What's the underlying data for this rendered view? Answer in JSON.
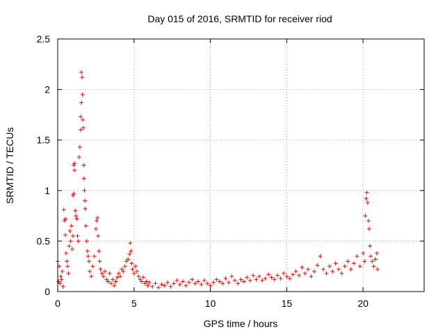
{
  "chart_data": {
    "type": "scatter",
    "title": "Day 015 of 2016, SRMTID for receiver riod",
    "xlabel": "GPS time / hours",
    "ylabel": "SRMTID / TECUs",
    "xlim": [
      0,
      24
    ],
    "ylim": [
      0,
      2.5
    ],
    "x_ticks": [
      0,
      5,
      10,
      15,
      20
    ],
    "x_tick_labels": [
      "0",
      "5",
      "10",
      "15",
      "20"
    ],
    "y_ticks": [
      0,
      0.5,
      1,
      1.5,
      2,
      2.5
    ],
    "y_tick_labels": [
      "0",
      "0.5",
      "1",
      "1.5",
      "2",
      "2.5"
    ],
    "grid": true,
    "marker": "+",
    "color": "#ff0000",
    "series": [
      {
        "name": "SRMTID",
        "points": [
          [
            0.0,
            0.3
          ],
          [
            0.05,
            0.1
          ],
          [
            0.1,
            0.25
          ],
          [
            0.15,
            0.08
          ],
          [
            0.2,
            0.15
          ],
          [
            0.25,
            0.12
          ],
          [
            0.3,
            0.2
          ],
          [
            0.35,
            0.05
          ],
          [
            0.4,
            0.81
          ],
          [
            0.45,
            0.7
          ],
          [
            0.5,
            0.72
          ],
          [
            0.5,
            0.56
          ],
          [
            0.55,
            0.38
          ],
          [
            0.6,
            0.3
          ],
          [
            0.65,
            0.25
          ],
          [
            0.7,
            0.18
          ],
          [
            0.75,
            0.45
          ],
          [
            0.8,
            0.6
          ],
          [
            0.85,
            0.5
          ],
          [
            0.9,
            0.65
          ],
          [
            0.95,
            0.42
          ],
          [
            1.0,
            0.55
          ],
          [
            1.0,
            0.95
          ],
          [
            1.05,
            0.97
          ],
          [
            1.05,
            1.25
          ],
          [
            1.1,
            1.27
          ],
          [
            1.1,
            1.2
          ],
          [
            1.15,
            0.8
          ],
          [
            1.2,
            0.75
          ],
          [
            1.25,
            0.72
          ],
          [
            1.3,
            0.55
          ],
          [
            1.35,
            0.5
          ],
          [
            1.4,
            1.33
          ],
          [
            1.45,
            1.43
          ],
          [
            1.5,
            1.6
          ],
          [
            1.5,
            1.73
          ],
          [
            1.55,
            1.87
          ],
          [
            1.55,
            2.17
          ],
          [
            1.6,
            2.12
          ],
          [
            1.62,
            1.95
          ],
          [
            1.65,
            1.7
          ],
          [
            1.68,
            1.62
          ],
          [
            1.7,
            1.25
          ],
          [
            1.72,
            1.12
          ],
          [
            1.75,
            1.0
          ],
          [
            1.78,
            0.9
          ],
          [
            1.8,
            0.82
          ],
          [
            1.85,
            0.65
          ],
          [
            1.9,
            0.5
          ],
          [
            1.95,
            0.4
          ],
          [
            2.0,
            0.35
          ],
          [
            2.05,
            0.3
          ],
          [
            2.1,
            0.2
          ],
          [
            2.2,
            0.15
          ],
          [
            2.3,
            0.25
          ],
          [
            2.4,
            0.35
          ],
          [
            2.5,
            0.62
          ],
          [
            2.55,
            0.7
          ],
          [
            2.6,
            0.73
          ],
          [
            2.65,
            0.55
          ],
          [
            2.7,
            0.4
          ],
          [
            2.75,
            0.3
          ],
          [
            2.8,
            0.22
          ],
          [
            2.9,
            0.18
          ],
          [
            3.0,
            0.15
          ],
          [
            3.1,
            0.2
          ],
          [
            3.2,
            0.12
          ],
          [
            3.3,
            0.1
          ],
          [
            3.4,
            0.18
          ],
          [
            3.5,
            0.08
          ],
          [
            3.6,
            0.12
          ],
          [
            3.7,
            0.06
          ],
          [
            3.8,
            0.1
          ],
          [
            3.9,
            0.14
          ],
          [
            4.0,
            0.18
          ],
          [
            4.1,
            0.15
          ],
          [
            4.2,
            0.22
          ],
          [
            4.3,
            0.2
          ],
          [
            4.4,
            0.25
          ],
          [
            4.5,
            0.3
          ],
          [
            4.6,
            0.32
          ],
          [
            4.7,
            0.37
          ],
          [
            4.75,
            0.48
          ],
          [
            4.8,
            0.4
          ],
          [
            4.85,
            0.28
          ],
          [
            4.9,
            0.22
          ],
          [
            5.0,
            0.18
          ],
          [
            5.1,
            0.25
          ],
          [
            5.2,
            0.2
          ],
          [
            5.3,
            0.15
          ],
          [
            5.4,
            0.12
          ],
          [
            5.5,
            0.1
          ],
          [
            5.6,
            0.14
          ],
          [
            5.7,
            0.08
          ],
          [
            5.8,
            0.1
          ],
          [
            5.9,
            0.06
          ],
          [
            6.0,
            0.09
          ],
          [
            6.2,
            0.05
          ],
          [
            6.4,
            0.08
          ],
          [
            6.6,
            0.04
          ],
          [
            6.8,
            0.07
          ],
          [
            7.0,
            0.06
          ],
          [
            7.2,
            0.09
          ],
          [
            7.4,
            0.05
          ],
          [
            7.6,
            0.08
          ],
          [
            7.8,
            0.11
          ],
          [
            8.0,
            0.07
          ],
          [
            8.2,
            0.1
          ],
          [
            8.4,
            0.06
          ],
          [
            8.6,
            0.09
          ],
          [
            8.8,
            0.12
          ],
          [
            9.0,
            0.08
          ],
          [
            9.2,
            0.1
          ],
          [
            9.4,
            0.07
          ],
          [
            9.6,
            0.11
          ],
          [
            9.8,
            0.08
          ],
          [
            10.0,
            0.06
          ],
          [
            10.2,
            0.09
          ],
          [
            10.4,
            0.12
          ],
          [
            10.6,
            0.1
          ],
          [
            10.8,
            0.08
          ],
          [
            11.0,
            0.13
          ],
          [
            11.2,
            0.09
          ],
          [
            11.4,
            0.15
          ],
          [
            11.6,
            0.11
          ],
          [
            11.8,
            0.08
          ],
          [
            12.0,
            0.12
          ],
          [
            12.2,
            0.1
          ],
          [
            12.4,
            0.14
          ],
          [
            12.6,
            0.11
          ],
          [
            12.8,
            0.16
          ],
          [
            13.0,
            0.12
          ],
          [
            13.2,
            0.15
          ],
          [
            13.4,
            0.11
          ],
          [
            13.6,
            0.13
          ],
          [
            13.8,
            0.17
          ],
          [
            14.0,
            0.14
          ],
          [
            14.2,
            0.12
          ],
          [
            14.4,
            0.16
          ],
          [
            14.6,
            0.13
          ],
          [
            14.8,
            0.18
          ],
          [
            15.0,
            0.15
          ],
          [
            15.2,
            0.13
          ],
          [
            15.4,
            0.17
          ],
          [
            15.6,
            0.2
          ],
          [
            15.8,
            0.16
          ],
          [
            16.0,
            0.24
          ],
          [
            16.2,
            0.18
          ],
          [
            16.4,
            0.22
          ],
          [
            16.6,
            0.15
          ],
          [
            16.8,
            0.2
          ],
          [
            17.0,
            0.26
          ],
          [
            17.2,
            0.35
          ],
          [
            17.4,
            0.22
          ],
          [
            17.6,
            0.18
          ],
          [
            17.8,
            0.25
          ],
          [
            18.0,
            0.2
          ],
          [
            18.2,
            0.28
          ],
          [
            18.4,
            0.22
          ],
          [
            18.6,
            0.18
          ],
          [
            18.8,
            0.25
          ],
          [
            19.0,
            0.3
          ],
          [
            19.2,
            0.22
          ],
          [
            19.4,
            0.28
          ],
          [
            19.6,
            0.35
          ],
          [
            19.8,
            0.25
          ],
          [
            20.0,
            0.38
          ],
          [
            20.1,
            0.3
          ],
          [
            20.15,
            0.75
          ],
          [
            20.2,
            0.92
          ],
          [
            20.25,
            0.98
          ],
          [
            20.3,
            0.88
          ],
          [
            20.35,
            0.7
          ],
          [
            20.4,
            0.62
          ],
          [
            20.45,
            0.45
          ],
          [
            20.5,
            0.35
          ],
          [
            20.6,
            0.3
          ],
          [
            20.7,
            0.25
          ],
          [
            20.8,
            0.32
          ],
          [
            20.9,
            0.38
          ],
          [
            20.95,
            0.22
          ]
        ]
      }
    ]
  }
}
